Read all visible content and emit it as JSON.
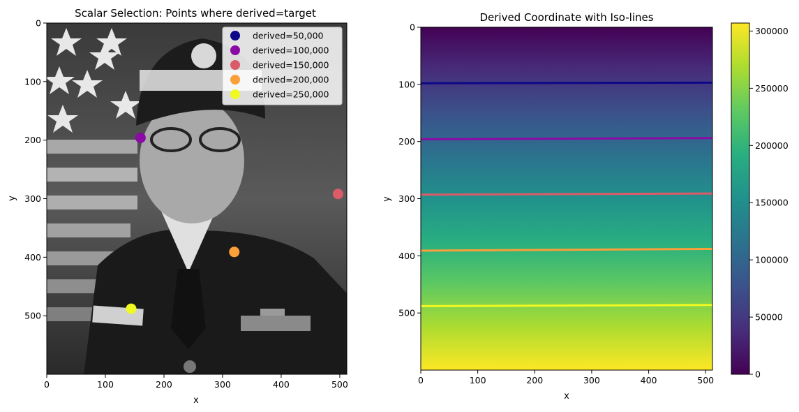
{
  "chart_data": [
    {
      "type": "scatter",
      "title": "Scalar Selection: Points where derived=target",
      "xlabel": "x",
      "ylabel": "y",
      "xlim": [
        0,
        512
      ],
      "ylim": [
        600,
        0
      ],
      "xticks": [
        0,
        100,
        200,
        300,
        400,
        500
      ],
      "yticks": [
        0,
        100,
        200,
        300,
        400,
        500
      ],
      "background": "grayscale photograph of a woman in a naval officer uniform and cap in front of an American flag",
      "legend_position": "top-right",
      "series": [
        {
          "name": "derived=50,000",
          "color": "#0d0887",
          "points": []
        },
        {
          "name": "derived=100,000",
          "color": "#8b0aa5",
          "points": [
            [
              160,
              196
            ]
          ]
        },
        {
          "name": "derived=150,000",
          "color": "#db5c68",
          "points": [
            [
              497,
              292
            ]
          ]
        },
        {
          "name": "derived=200,000",
          "color": "#fb9f3a",
          "points": [
            [
              320,
              391
            ]
          ]
        },
        {
          "name": "derived=250,000",
          "color": "#f0f921",
          "points": [
            [
              144,
              488
            ]
          ]
        }
      ]
    },
    {
      "type": "heatmap",
      "title": "Derived Coordinate with Iso-lines",
      "xlabel": "x",
      "ylabel": "y",
      "xlim": [
        0,
        512
      ],
      "ylim": [
        600,
        0
      ],
      "xticks": [
        0,
        100,
        200,
        300,
        400,
        500
      ],
      "yticks": [
        0,
        100,
        200,
        300,
        400,
        500
      ],
      "colormap": "viridis",
      "value_range": [
        0,
        307000
      ],
      "colorbar_ticks": [
        0,
        50000,
        100000,
        150000,
        200000,
        250000,
        300000
      ],
      "isolines": [
        {
          "level": 50000,
          "color": "#0d0887",
          "y_left": 98,
          "y_right": 97
        },
        {
          "level": 100000,
          "color": "#8b0aa5",
          "y_left": 196,
          "y_right": 194
        },
        {
          "level": 150000,
          "color": "#db5c68",
          "y_left": 293,
          "y_right": 291
        },
        {
          "level": 200000,
          "color": "#fb9f3a",
          "y_left": 391,
          "y_right": 388
        },
        {
          "level": 250000,
          "color": "#f0f921",
          "y_left": 488,
          "y_right": 486
        }
      ]
    }
  ]
}
